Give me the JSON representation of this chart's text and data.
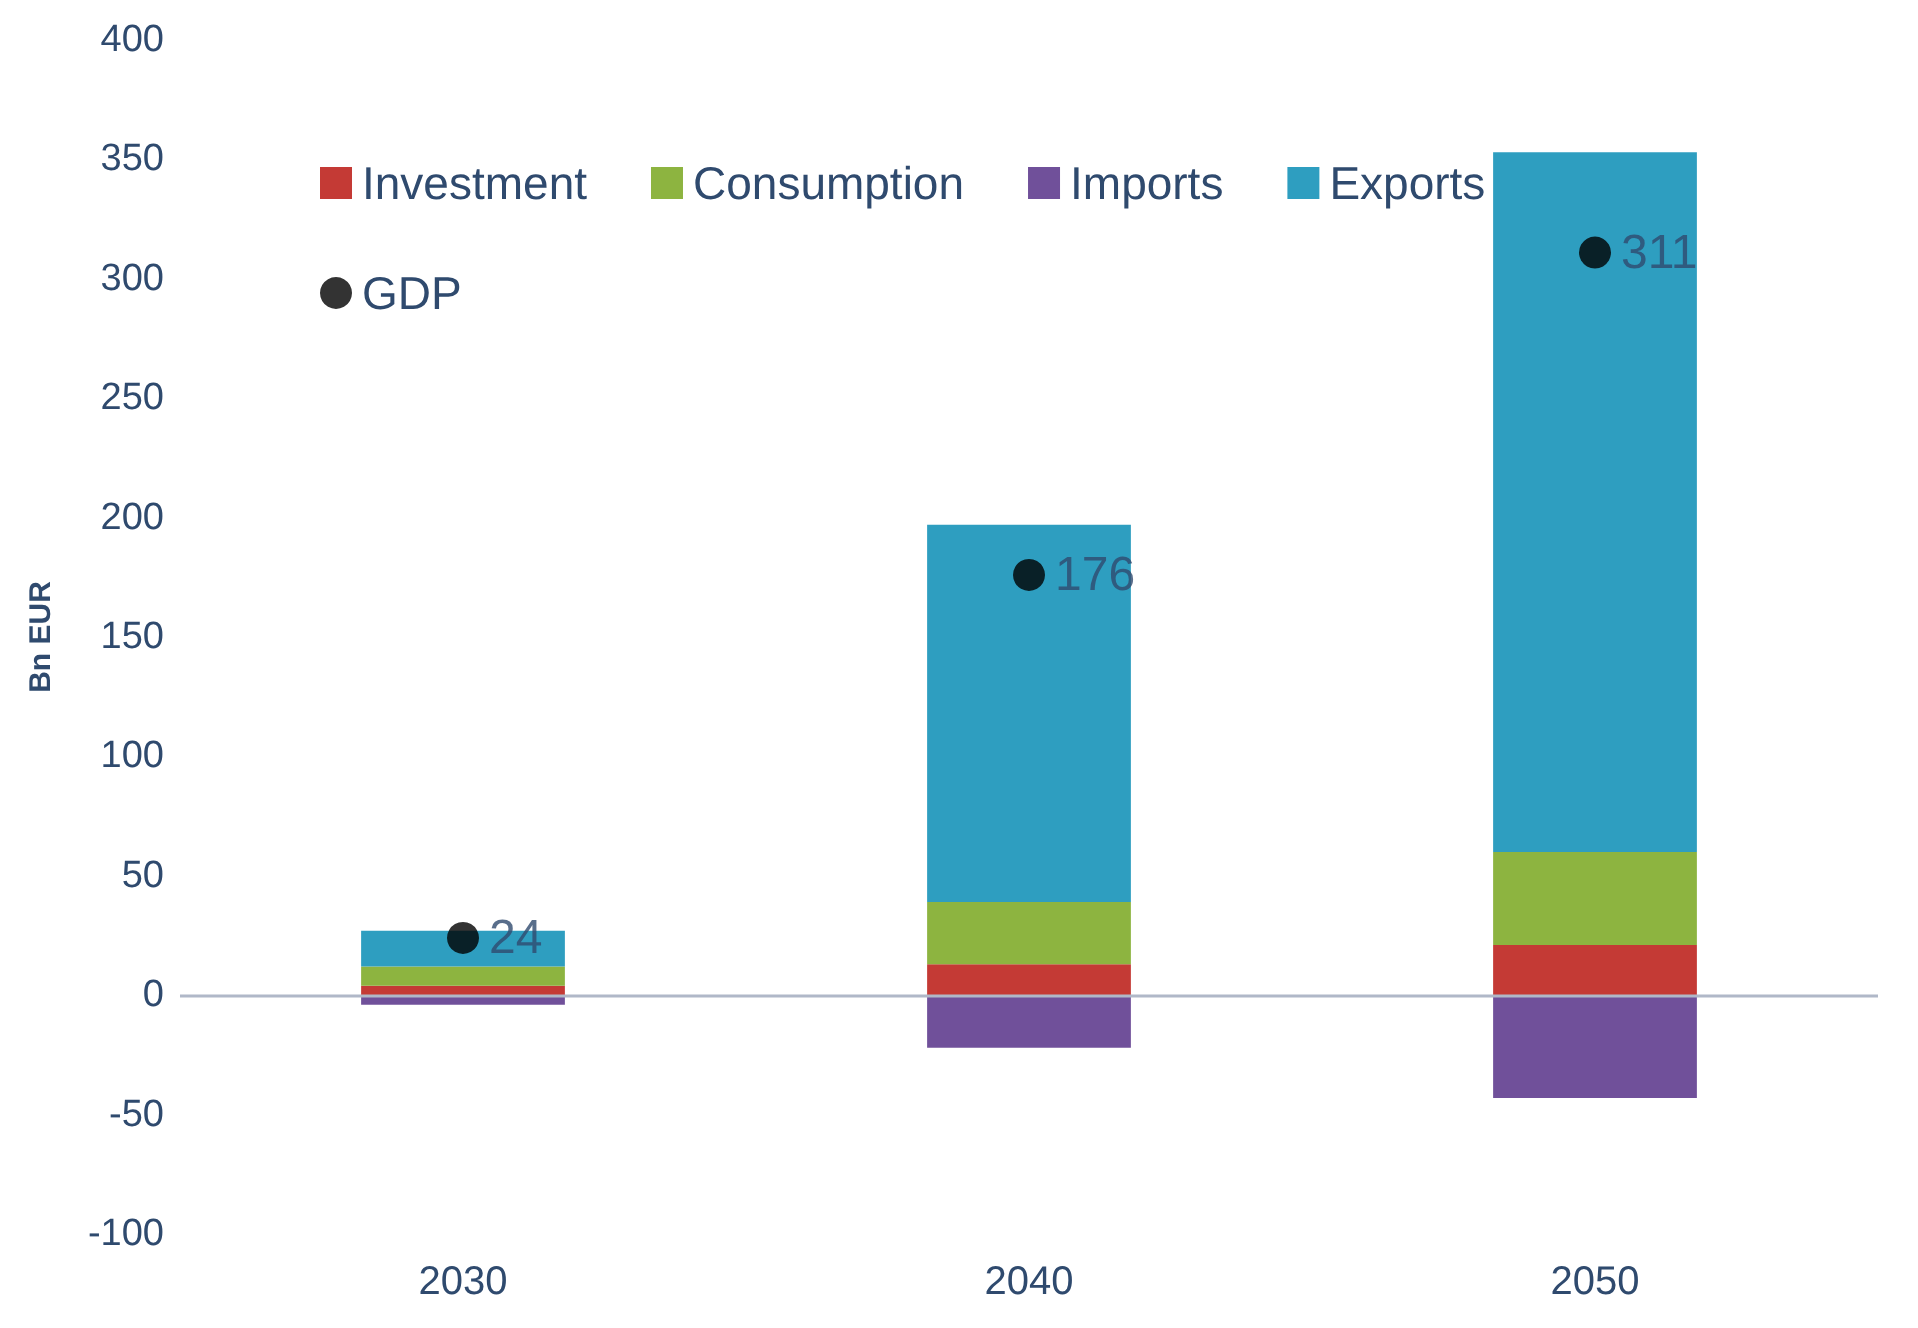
{
  "chart_data": {
    "type": "bar",
    "stacked": true,
    "ylabel": "Bn EUR",
    "categories": [
      "2030",
      "2040",
      "2050"
    ],
    "series": [
      {
        "name": "Investment",
        "color": "#c43a35",
        "values": [
          4,
          13,
          21
        ]
      },
      {
        "name": "Consumption",
        "color": "#8db440",
        "values": [
          8,
          26,
          39
        ]
      },
      {
        "name": "Imports",
        "color": "#70509a",
        "values": [
          -4,
          -22,
          -43
        ]
      },
      {
        "name": "Exports",
        "color": "#2e9ec0",
        "values": [
          15,
          158,
          293
        ]
      },
      {
        "name": "GDP",
        "type": "scatter",
        "color": "#000000",
        "values": [
          24,
          176,
          311
        ],
        "value_labels": [
          "24",
          "176",
          "311"
        ]
      }
    ],
    "ylim": [
      -100,
      400
    ],
    "yticks": [
      -100,
      -50,
      0,
      50,
      100,
      150,
      200,
      250,
      300,
      350,
      400
    ],
    "ref_lines": [
      {
        "axis": "y",
        "value": 0,
        "color": "#b0b8c8"
      }
    ],
    "grid": false,
    "legend": "top left",
    "marker": "circle"
  }
}
